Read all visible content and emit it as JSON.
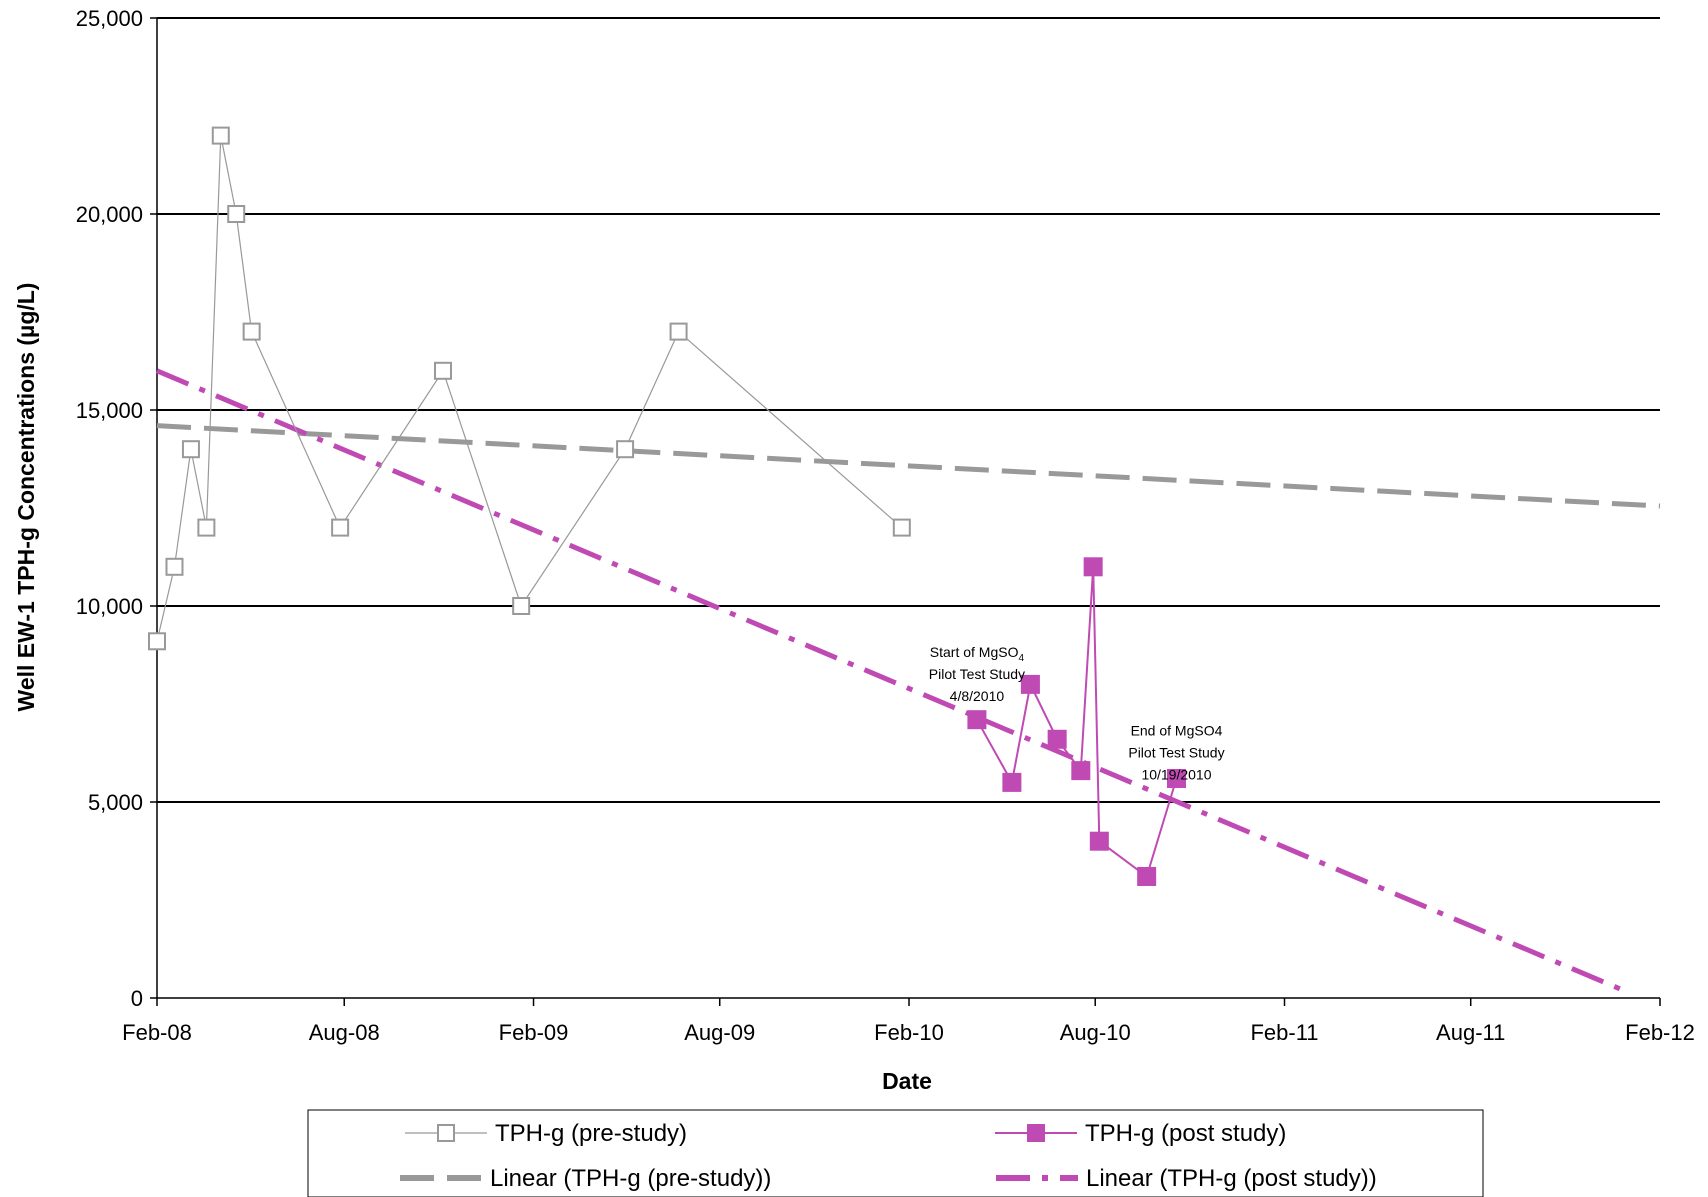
{
  "chart_data": {
    "type": "line",
    "title": "",
    "xlabel": "Date",
    "ylabel": "Well EW-1 TPH-g Concentrations (µg/L)",
    "xlim": [
      "2008-02-01",
      "2012-02-01"
    ],
    "ylim": [
      0,
      25000
    ],
    "x_ticks": [
      "Feb-08",
      "Aug-08",
      "Feb-09",
      "Aug-09",
      "Feb-10",
      "Aug-10",
      "Feb-11",
      "Aug-11",
      "Feb-12"
    ],
    "x_tick_dates": [
      "2008-02-01",
      "2008-08-01",
      "2009-02-01",
      "2009-08-01",
      "2010-02-01",
      "2010-08-01",
      "2011-02-01",
      "2011-08-01",
      "2012-02-01"
    ],
    "y_ticks": [
      0,
      5000,
      10000,
      15000,
      20000,
      25000
    ],
    "y_tick_labels": [
      "0",
      "5,000",
      "10,000",
      "15,000",
      "20,000",
      "25,000"
    ],
    "grid": "horizontal",
    "legend_position": "bottom",
    "colors": {
      "pre": "#999999",
      "post": "#c04ab4",
      "trend_pre": "#999999",
      "trend_post": "#c04ab4",
      "grid": "#000000"
    },
    "series": [
      {
        "name": "TPH-g (pre-study)",
        "marker": "hollow-square",
        "points": [
          [
            "2008-02-01",
            9100
          ],
          [
            "2008-02-18",
            11000
          ],
          [
            "2008-03-05",
            14000
          ],
          [
            "2008-03-20",
            12000
          ],
          [
            "2008-04-03",
            22000
          ],
          [
            "2008-04-18",
            20000
          ],
          [
            "2008-05-03",
            17000
          ],
          [
            "2008-07-28",
            12000
          ],
          [
            "2008-11-05",
            16000
          ],
          [
            "2009-01-20",
            10000
          ],
          [
            "2009-05-01",
            14000
          ],
          [
            "2009-06-22",
            17000
          ],
          [
            "2010-01-25",
            12000
          ]
        ]
      },
      {
        "name": "TPH-g (post study)",
        "marker": "filled-square",
        "points": [
          [
            "2010-04-08",
            7100
          ],
          [
            "2010-05-12",
            5500
          ],
          [
            "2010-05-30",
            8000
          ],
          [
            "2010-06-25",
            6600
          ],
          [
            "2010-07-18",
            5800
          ],
          [
            "2010-07-30",
            11000
          ],
          [
            "2010-08-05",
            4000
          ],
          [
            "2010-09-20",
            3100
          ],
          [
            "2010-10-19",
            5600
          ]
        ]
      }
    ],
    "trendlines": [
      {
        "name": "Linear (TPH-g (pre-study))",
        "style": "dashed",
        "points": [
          [
            "2008-02-01",
            14600
          ],
          [
            "2012-02-01",
            12550
          ]
        ]
      },
      {
        "name": "Linear (TPH-g (post study))",
        "style": "dash-dot",
        "points": [
          [
            "2008-02-01",
            16000
          ],
          [
            "2011-12-27",
            200
          ]
        ]
      }
    ],
    "annotations": [
      {
        "lines": [
          "Start of MgSO",
          "Pilot Test Study",
          "4/8/2010"
        ],
        "subscript": "4",
        "anchor_date": "2010-04-08",
        "anchor_value": 8700
      },
      {
        "lines": [
          "End of MgSO4",
          "Pilot Test Study",
          "10/19/2010"
        ],
        "subscript": "",
        "anchor_date": "2010-10-19",
        "anchor_value": 6700
      }
    ]
  }
}
